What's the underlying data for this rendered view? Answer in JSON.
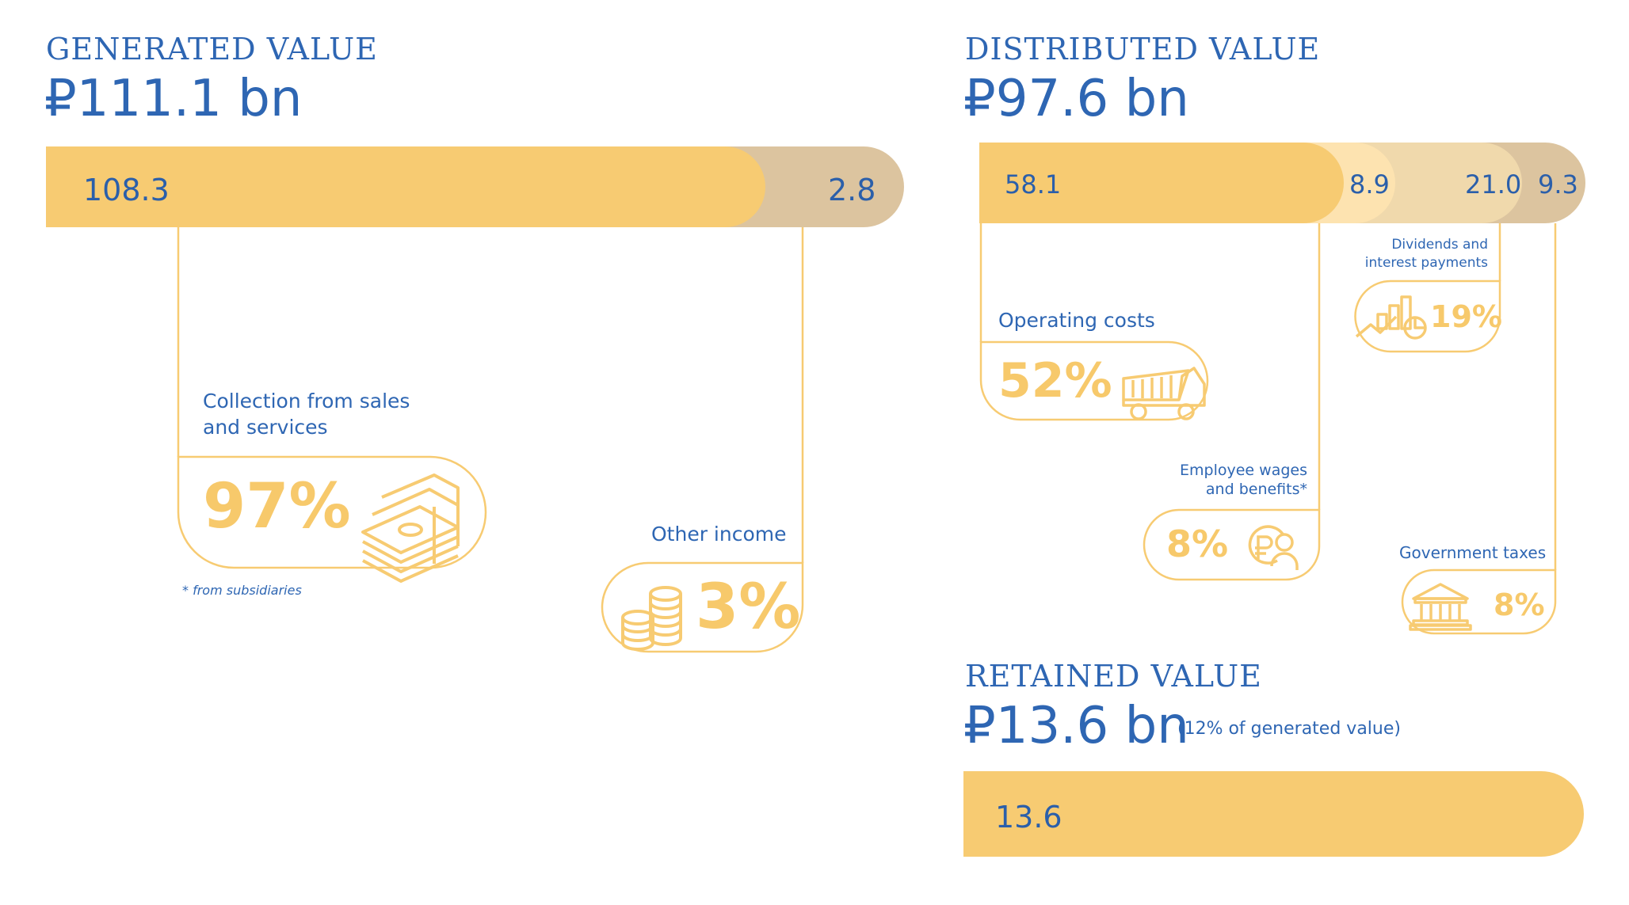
{
  "generated": {
    "heading": "GENERATED VALUE",
    "total": "₽111.1 bn",
    "segments": [
      {
        "label": "108.3",
        "value": 108.3,
        "color": "#f7cb72"
      },
      {
        "label": "2.8",
        "value": 2.8,
        "color": "#dcc49f"
      }
    ],
    "categories": [
      {
        "name_line1": "Collection from sales",
        "name_line2": "and services",
        "percent": "97%",
        "icon": "money-stack-icon"
      },
      {
        "name_line1": "Other income",
        "percent": "3%",
        "icon": "coins-icon"
      }
    ],
    "footnote": "* from subsidiaries"
  },
  "distributed": {
    "heading": "DISTRIBUTED VALUE",
    "total": "₽97.6 bn",
    "segments": [
      {
        "label": "58.1",
        "value": 58.1,
        "color": "#f7cb72"
      },
      {
        "label": "8.9",
        "value": 8.9,
        "color": "#fde3b0"
      },
      {
        "label": "21.0",
        "value": 21.0,
        "color": "#f0d9ac"
      },
      {
        "label": "9.3",
        "value": 9.3,
        "color": "#dcc49f"
      }
    ],
    "categories": [
      {
        "name_line1": "Operating costs",
        "percent": "52%",
        "icon": "dump-truck-icon"
      },
      {
        "name_line1": "Employee wages",
        "name_line2": "and benefits*",
        "percent": "8%",
        "icon": "ruble-person-icon"
      },
      {
        "name_line1": "Dividends and",
        "name_line2": "interest payments",
        "percent": "19%",
        "icon": "chart-growth-icon"
      },
      {
        "name_line1": "Government taxes",
        "percent": "8%",
        "icon": "government-building-icon"
      }
    ]
  },
  "retained": {
    "heading": "RETAINED  VALUE",
    "total": "₽13.6 bn",
    "note": "(12% of generated value)",
    "segments": [
      {
        "label": "13.6",
        "value": 13.6,
        "color": "#f7cb72"
      }
    ]
  },
  "chart_data": [
    {
      "type": "bar",
      "title": "GENERATED VALUE",
      "categories": [
        "Collection from sales and services",
        "Other income"
      ],
      "values": [
        108.3,
        2.8
      ],
      "shares": [
        "97%",
        "3%"
      ]
    },
    {
      "type": "bar",
      "title": "DISTRIBUTED VALUE",
      "categories": [
        "Operating costs",
        "Employee wages and benefits*",
        "Dividends and interest payments",
        "Government taxes"
      ],
      "values": [
        58.1,
        8.9,
        21.0,
        9.3
      ],
      "shares": [
        "52%",
        "8%",
        "19%",
        "8%"
      ]
    },
    {
      "type": "bar",
      "title": "RETAINED  VALUE",
      "categories": [
        ""
      ],
      "values": [
        13.6
      ]
    }
  ]
}
